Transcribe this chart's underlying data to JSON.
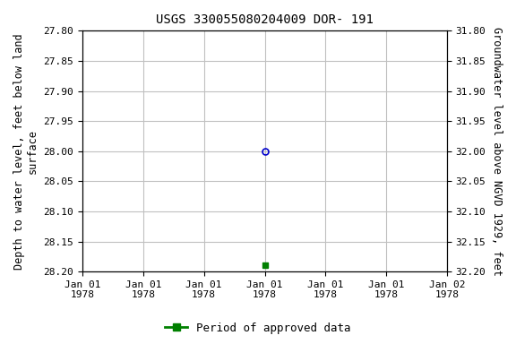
{
  "title": "USGS 330055080204009 DOR- 191",
  "ylabel_left": "Depth to water level, feet below land\nsurface",
  "ylabel_right": "Groundwater level above NGVD 1929, feet",
  "ylim_left": [
    27.8,
    28.2
  ],
  "ylim_right": [
    32.2,
    31.8
  ],
  "yticks_left": [
    27.8,
    27.85,
    27.9,
    27.95,
    28.0,
    28.05,
    28.1,
    28.15,
    28.2
  ],
  "yticks_right": [
    32.2,
    32.15,
    32.1,
    32.05,
    32.0,
    31.95,
    31.9,
    31.85,
    31.8
  ],
  "xlim": [
    0,
    6
  ],
  "xtick_positions": [
    0,
    1,
    2,
    3,
    4,
    5,
    6
  ],
  "xtick_labels": [
    "Jan 01\n1978",
    "Jan 01\n1978",
    "Jan 01\n1978",
    "Jan 01\n1978",
    "Jan 01\n1978",
    "Jan 01\n1978",
    "Jan 02\n1978"
  ],
  "point_blue_x": 3,
  "point_blue_y": 28.0,
  "point_green_x": 3,
  "point_green_y": 28.19,
  "blue_color": "#0000cc",
  "green_color": "#008000",
  "grid_color": "#c0c0c0",
  "bg_color": "#ffffff",
  "legend_label": "Period of approved data",
  "title_fontsize": 10,
  "label_fontsize": 8.5,
  "tick_fontsize": 8
}
